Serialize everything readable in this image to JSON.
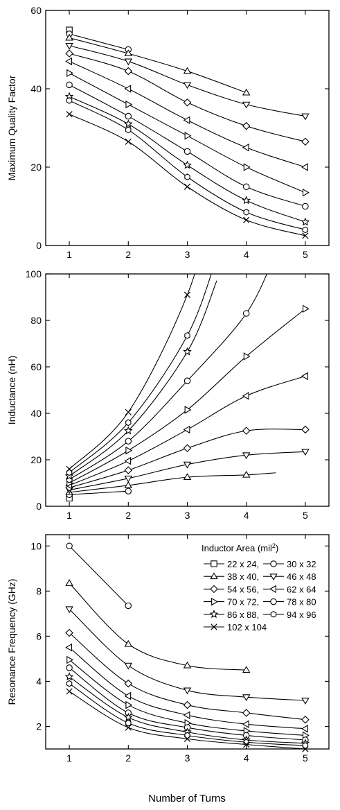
{
  "figure": {
    "xlabel": "Number of Turns",
    "legend_title": "Inductor Area (mil²)",
    "legend_title_base": "Inductor Area (mil",
    "legend_title_sup": "2",
    "legend_title_end": ")"
  },
  "chart_data": [
    {
      "type": "line",
      "title": "",
      "xlabel": "",
      "ylabel": "Maximum Quality Factor",
      "xlim": [
        0.6,
        5.4
      ],
      "ylim": [
        0,
        60
      ],
      "xticks": [
        1,
        2,
        3,
        4,
        5
      ],
      "yticks": [
        0,
        20,
        40,
        60
      ],
      "grid": false,
      "series": [
        {
          "name": "22 x 24",
          "x": [
            1
          ],
          "y": [
            55
          ]
        },
        {
          "name": "30 x 32",
          "x": [
            1,
            2
          ],
          "y": [
            54,
            50
          ]
        },
        {
          "name": "38 x 40",
          "x": [
            1,
            2,
            3,
            4
          ],
          "y": [
            53,
            49,
            44.5,
            39
          ]
        },
        {
          "name": "46 x 48",
          "x": [
            1,
            2,
            3,
            4,
            5
          ],
          "y": [
            51,
            47,
            41,
            36,
            33
          ]
        },
        {
          "name": "54 x 56",
          "x": [
            1,
            2,
            3,
            4,
            5
          ],
          "y": [
            49,
            44.5,
            36.5,
            30.5,
            26.5
          ]
        },
        {
          "name": "62 x 64",
          "x": [
            1,
            2,
            3,
            4,
            5
          ],
          "y": [
            47,
            40,
            32,
            25,
            20
          ]
        },
        {
          "name": "70 x 72",
          "x": [
            1,
            2,
            3,
            4,
            5
          ],
          "y": [
            44,
            36,
            28,
            20,
            13.5
          ]
        },
        {
          "name": "78 x 80",
          "x": [
            1,
            2,
            3,
            4,
            5
          ],
          "y": [
            41,
            33,
            24,
            15,
            10
          ]
        },
        {
          "name": "86 x 88",
          "x": [
            1,
            2,
            3,
            4,
            5
          ],
          "y": [
            38,
            31,
            20.5,
            11.5,
            6
          ]
        },
        {
          "name": "94 x 96",
          "x": [
            1,
            2,
            3,
            4,
            5
          ],
          "y": [
            37,
            29.5,
            17.5,
            8.5,
            4
          ]
        },
        {
          "name": "102 x 104",
          "x": [
            1,
            2,
            3,
            4,
            5
          ],
          "y": [
            33.5,
            26.5,
            15,
            6.5,
            2.5
          ]
        }
      ]
    },
    {
      "type": "line",
      "title": "",
      "xlabel": "",
      "ylabel": "Inductance (nH)",
      "xlim": [
        0.6,
        5.4
      ],
      "ylim": [
        0,
        100
      ],
      "xticks": [
        1,
        2,
        3,
        4,
        5
      ],
      "yticks": [
        0,
        20,
        40,
        60,
        80,
        100
      ],
      "grid": false,
      "series": [
        {
          "name": "22 x 24",
          "x": [
            1
          ],
          "y": [
            3.5
          ]
        },
        {
          "name": "30 x 32",
          "x": [
            1,
            2
          ],
          "y": [
            5,
            6.5
          ]
        },
        {
          "name": "38 x 40",
          "x": [
            1,
            2,
            3,
            4
          ],
          "y": [
            6,
            9,
            12.5,
            13.5
          ]
        },
        {
          "name": "46 x 48",
          "x": [
            1,
            2,
            3,
            4,
            5
          ],
          "y": [
            7,
            12,
            18,
            22,
            23.5
          ]
        },
        {
          "name": "54 x 56",
          "x": [
            1,
            2,
            3,
            4,
            5
          ],
          "y": [
            8,
            15.5,
            25,
            32.5,
            33
          ]
        },
        {
          "name": "62 x 64",
          "x": [
            1,
            2,
            3,
            4,
            5
          ],
          "y": [
            9,
            19.5,
            33,
            47.5,
            56
          ]
        },
        {
          "name": "70 x 72",
          "x": [
            1,
            2,
            3,
            4,
            5
          ],
          "y": [
            10,
            24,
            41.5,
            64.5,
            85
          ]
        },
        {
          "name": "78 x 80",
          "x": [
            1,
            2,
            3,
            4
          ],
          "y": [
            11.5,
            28,
            54,
            83
          ]
        },
        {
          "name": "86 x 88",
          "x": [
            1,
            2,
            3
          ],
          "y": [
            13,
            32.5,
            66.5
          ]
        },
        {
          "name": "94 x 96",
          "x": [
            1,
            2,
            3
          ],
          "y": [
            14.5,
            36,
            73.5
          ]
        },
        {
          "name": "102 x 104",
          "x": [
            1,
            2,
            3
          ],
          "y": [
            16,
            40.5,
            91
          ]
        }
      ]
    },
    {
      "type": "line",
      "title": "",
      "xlabel": "Number of Turns",
      "ylabel": "Resonance Frequency (GHz)",
      "xlim": [
        0.6,
        5.4
      ],
      "ylim": [
        1,
        10.5
      ],
      "xticks": [
        1,
        2,
        3,
        4,
        5
      ],
      "yticks": [
        2,
        4,
        6,
        8,
        10
      ],
      "grid": false,
      "legend": "top-right",
      "series": [
        {
          "name": "22 x 24",
          "x": [],
          "y": []
        },
        {
          "name": "30 x 32",
          "x": [
            1,
            2
          ],
          "y": [
            10,
            7.35
          ]
        },
        {
          "name": "38 x 40",
          "x": [
            1,
            2,
            3,
            4
          ],
          "y": [
            8.35,
            5.65,
            4.7,
            4.5
          ]
        },
        {
          "name": "46 x 48",
          "x": [
            1,
            2,
            3,
            4,
            5
          ],
          "y": [
            7.2,
            4.7,
            3.6,
            3.3,
            3.15
          ]
        },
        {
          "name": "54 x 56",
          "x": [
            1,
            2,
            3,
            4,
            5
          ],
          "y": [
            6.15,
            3.9,
            2.95,
            2.6,
            2.3
          ]
        },
        {
          "name": "62 x 64",
          "x": [
            1,
            2,
            3,
            4,
            5
          ],
          "y": [
            5.5,
            3.35,
            2.5,
            2.1,
            1.9
          ]
        },
        {
          "name": "70 x 72",
          "x": [
            1,
            2,
            3,
            4,
            5
          ],
          "y": [
            4.95,
            2.95,
            2.15,
            1.8,
            1.6
          ]
        },
        {
          "name": "78 x 80",
          "x": [
            1,
            2,
            3,
            4,
            5
          ],
          "y": [
            4.6,
            2.6,
            1.95,
            1.6,
            1.4
          ]
        },
        {
          "name": "86 x 88",
          "x": [
            1,
            2,
            3,
            4,
            5
          ],
          "y": [
            4.2,
            2.4,
            1.75,
            1.4,
            1.25
          ]
        },
        {
          "name": "94 x 96",
          "x": [
            1,
            2,
            3,
            4,
            5
          ],
          "y": [
            3.9,
            2.15,
            1.6,
            1.3,
            1.15
          ]
        },
        {
          "name": "102 x 104",
          "x": [
            1,
            2,
            3,
            4,
            5
          ],
          "y": [
            3.55,
            1.95,
            1.45,
            1.2,
            1.0
          ]
        }
      ]
    }
  ],
  "markers": [
    "square",
    "circle",
    "triangle-up",
    "triangle-down",
    "diamond",
    "triangle-left",
    "triangle-right",
    "circle",
    "star",
    "hexagon",
    "x"
  ]
}
